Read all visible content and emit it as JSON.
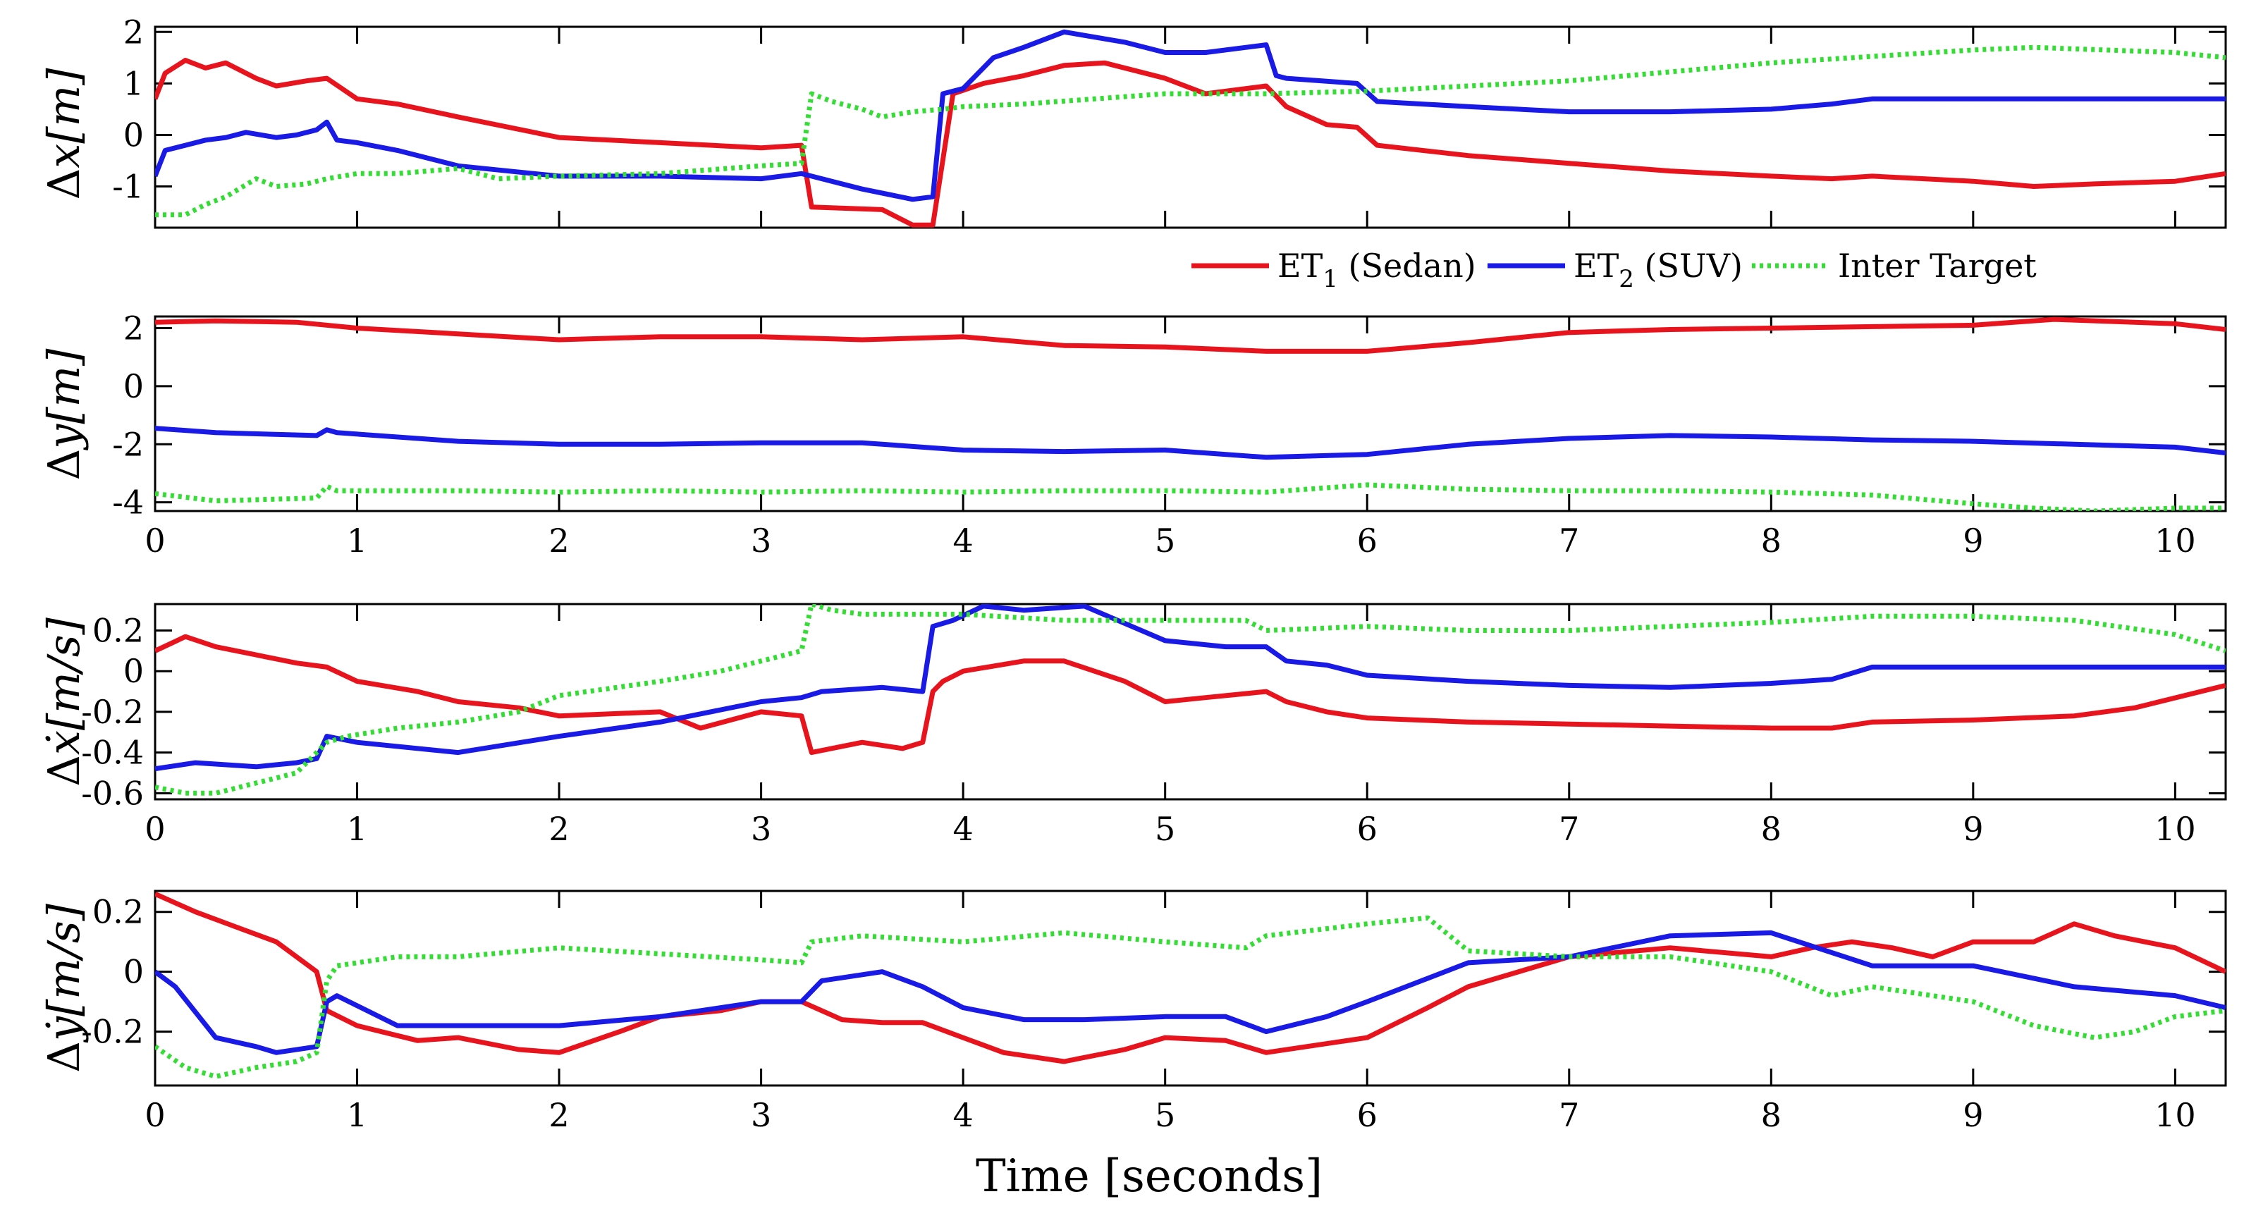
{
  "colors": {
    "et1": "#e8141d",
    "et2": "#1a1ae6",
    "inter": "#33dd33",
    "axis": "#000000",
    "background": "#ffffff"
  },
  "legend": {
    "et1": {
      "main": "ET",
      "sub": "1",
      "rest": " (Sedan)"
    },
    "et2": {
      "main": "ET",
      "sub": "2",
      "rest": " (SUV)"
    },
    "inter": {
      "main": "Inter Target",
      "sub": "",
      "rest": ""
    }
  },
  "chart_data": [
    {
      "type": "line",
      "title": "",
      "ylabel": {
        "prefix": "Δ",
        "var": "x",
        "unit": "[m]"
      },
      "xlim": [
        0,
        10.25
      ],
      "ylim": [
        -1.8,
        2.1
      ],
      "yticks": [
        "-1",
        "0",
        "1",
        "2"
      ],
      "ytick_values": [
        -1,
        0,
        1,
        2
      ],
      "xticks": [],
      "xtick_values": [],
      "series": [
        {
          "name": "ET1 (Sedan)",
          "key": "et1",
          "dash": "solid",
          "x": [
            0,
            0.05,
            0.15,
            0.25,
            0.35,
            0.5,
            0.6,
            0.75,
            0.85,
            1.0,
            1.2,
            1.5,
            2.0,
            2.5,
            3.0,
            3.2,
            3.25,
            3.6,
            3.75,
            3.85,
            3.95,
            4.1,
            4.3,
            4.5,
            4.7,
            5.0,
            5.2,
            5.5,
            5.6,
            5.8,
            5.95,
            6.05,
            6.5,
            7.0,
            7.5,
            8.0,
            8.3,
            8.5,
            9.0,
            9.3,
            9.6,
            10.0,
            10.25
          ],
          "values": [
            0.7,
            1.2,
            1.45,
            1.3,
            1.4,
            1.1,
            0.95,
            1.05,
            1.1,
            0.7,
            0.6,
            0.35,
            -0.05,
            -0.15,
            -0.25,
            -0.2,
            -1.4,
            -1.45,
            -1.75,
            -1.75,
            0.8,
            1.0,
            1.15,
            1.35,
            1.4,
            1.1,
            0.8,
            0.95,
            0.55,
            0.2,
            0.15,
            -0.2,
            -0.4,
            -0.55,
            -0.7,
            -0.8,
            -0.85,
            -0.8,
            -0.9,
            -1.0,
            -0.95,
            -0.9,
            -0.75
          ]
        },
        {
          "name": "ET2 (SUV)",
          "key": "et2",
          "dash": "solid",
          "x": [
            0,
            0.05,
            0.15,
            0.25,
            0.35,
            0.45,
            0.6,
            0.7,
            0.8,
            0.85,
            0.9,
            1.0,
            1.2,
            1.5,
            2.0,
            2.5,
            3.0,
            3.2,
            3.25,
            3.5,
            3.75,
            3.85,
            3.9,
            4.0,
            4.15,
            4.3,
            4.5,
            4.8,
            5.0,
            5.2,
            5.5,
            5.55,
            5.6,
            5.95,
            6.05,
            6.5,
            7.0,
            7.5,
            8.0,
            8.3,
            8.5,
            9.0,
            9.5,
            10.0,
            10.25
          ],
          "values": [
            -0.8,
            -0.3,
            -0.2,
            -0.1,
            -0.05,
            0.05,
            -0.05,
            0.0,
            0.1,
            0.25,
            -0.1,
            -0.15,
            -0.3,
            -0.6,
            -0.8,
            -0.8,
            -0.85,
            -0.75,
            -0.8,
            -1.05,
            -1.25,
            -1.2,
            0.8,
            0.9,
            1.5,
            1.7,
            2.0,
            1.8,
            1.6,
            1.6,
            1.75,
            1.15,
            1.1,
            1.0,
            0.65,
            0.55,
            0.45,
            0.45,
            0.5,
            0.6,
            0.7,
            0.7,
            0.7,
            0.7,
            0.7
          ]
        },
        {
          "name": "Inter Target",
          "key": "inter",
          "dash": "dotted",
          "x": [
            0,
            0.15,
            0.25,
            0.35,
            0.5,
            0.6,
            0.75,
            0.85,
            1.0,
            1.2,
            1.5,
            1.7,
            2.0,
            2.5,
            3.0,
            3.2,
            3.25,
            3.35,
            3.5,
            3.6,
            3.75,
            3.9,
            4.0,
            4.3,
            5.0,
            5.5,
            6.0,
            7.0,
            8.0,
            9.0,
            9.3,
            10.0,
            10.25
          ],
          "values": [
            -1.55,
            -1.55,
            -1.35,
            -1.2,
            -0.85,
            -1.0,
            -0.95,
            -0.85,
            -0.75,
            -0.75,
            -0.65,
            -0.85,
            -0.8,
            -0.75,
            -0.6,
            -0.55,
            0.8,
            0.65,
            0.5,
            0.35,
            0.45,
            0.5,
            0.55,
            0.6,
            0.8,
            0.8,
            0.85,
            1.05,
            1.4,
            1.65,
            1.7,
            1.6,
            1.5
          ]
        }
      ]
    },
    {
      "type": "line",
      "title": "",
      "ylabel": {
        "prefix": "Δ",
        "var": "y",
        "unit": "[m]"
      },
      "xlim": [
        0,
        10.25
      ],
      "ylim": [
        -4.3,
        2.4
      ],
      "yticks": [
        "-4",
        "-2",
        "0",
        "2"
      ],
      "ytick_values": [
        -4,
        -2,
        0,
        2
      ],
      "xticks": [
        "0",
        "1",
        "2",
        "3",
        "4",
        "5",
        "6",
        "7",
        "8",
        "9",
        "10"
      ],
      "xtick_values": [
        0,
        1,
        2,
        3,
        4,
        5,
        6,
        7,
        8,
        9,
        10
      ],
      "series": [
        {
          "name": "ET1 (Sedan)",
          "key": "et1",
          "dash": "solid",
          "x": [
            0,
            0.3,
            0.7,
            1.0,
            1.5,
            2.0,
            2.5,
            3.0,
            3.5,
            4.0,
            4.5,
            5.0,
            5.5,
            6.0,
            6.5,
            7.0,
            7.5,
            8.0,
            8.5,
            9.0,
            9.4,
            10.0,
            10.25
          ],
          "values": [
            2.2,
            2.25,
            2.2,
            2.0,
            1.8,
            1.6,
            1.7,
            1.7,
            1.6,
            1.7,
            1.4,
            1.35,
            1.2,
            1.2,
            1.5,
            1.85,
            1.95,
            2.0,
            2.05,
            2.1,
            2.3,
            2.15,
            1.95
          ]
        },
        {
          "name": "ET2 (SUV)",
          "key": "et2",
          "dash": "solid",
          "x": [
            0,
            0.3,
            0.8,
            0.85,
            0.9,
            1.5,
            2.0,
            2.5,
            3.0,
            3.5,
            4.0,
            4.5,
            5.0,
            5.5,
            6.0,
            6.5,
            7.0,
            7.5,
            8.0,
            8.5,
            9.0,
            9.5,
            10.0,
            10.25
          ],
          "values": [
            -1.45,
            -1.6,
            -1.7,
            -1.5,
            -1.6,
            -1.9,
            -2.0,
            -2.0,
            -1.95,
            -1.95,
            -2.2,
            -2.25,
            -2.2,
            -2.45,
            -2.35,
            -2.0,
            -1.8,
            -1.7,
            -1.75,
            -1.85,
            -1.9,
            -2.0,
            -2.1,
            -2.3
          ]
        },
        {
          "name": "Inter Target",
          "key": "inter",
          "dash": "dotted",
          "x": [
            0,
            0.3,
            0.8,
            0.85,
            0.9,
            1.5,
            2.0,
            2.5,
            3.0,
            3.5,
            4.0,
            4.5,
            5.0,
            5.5,
            6.0,
            6.5,
            7.0,
            7.5,
            8.0,
            8.5,
            9.0,
            9.3,
            9.6,
            10.0,
            10.25
          ],
          "values": [
            -3.7,
            -3.95,
            -3.85,
            -3.45,
            -3.6,
            -3.6,
            -3.65,
            -3.6,
            -3.65,
            -3.6,
            -3.65,
            -3.6,
            -3.6,
            -3.65,
            -3.4,
            -3.55,
            -3.6,
            -3.6,
            -3.65,
            -3.75,
            -4.05,
            -4.2,
            -4.3,
            -4.2,
            -4.2
          ]
        }
      ]
    },
    {
      "type": "line",
      "title": "",
      "ylabel": {
        "prefix": "Δ",
        "var": "ẋ",
        "unit": "[m/s]"
      },
      "xlim": [
        0,
        10.25
      ],
      "ylim": [
        -0.63,
        0.33
      ],
      "yticks": [
        "-0.6",
        "-0.4",
        "-0.2",
        "0",
        "0.2"
      ],
      "ytick_values": [
        -0.6,
        -0.4,
        -0.2,
        0,
        0.2
      ],
      "xticks": [
        "0",
        "1",
        "2",
        "3",
        "4",
        "5",
        "6",
        "7",
        "8",
        "9",
        "10"
      ],
      "xtick_values": [
        0,
        1,
        2,
        3,
        4,
        5,
        6,
        7,
        8,
        9,
        10
      ],
      "series": [
        {
          "name": "ET1 (Sedan)",
          "key": "et1",
          "dash": "solid",
          "x": [
            0,
            0.15,
            0.3,
            0.5,
            0.7,
            0.85,
            1.0,
            1.3,
            1.5,
            1.8,
            2.0,
            2.5,
            2.7,
            3.0,
            3.2,
            3.25,
            3.5,
            3.7,
            3.8,
            3.85,
            3.9,
            4.0,
            4.3,
            4.5,
            4.8,
            5.0,
            5.2,
            5.5,
            5.6,
            5.8,
            6.0,
            6.5,
            7.0,
            7.5,
            8.0,
            8.3,
            8.5,
            9.0,
            9.5,
            9.8,
            10.25
          ],
          "values": [
            0.1,
            0.17,
            0.12,
            0.08,
            0.04,
            0.02,
            -0.05,
            -0.1,
            -0.15,
            -0.18,
            -0.22,
            -0.2,
            -0.28,
            -0.2,
            -0.22,
            -0.4,
            -0.35,
            -0.38,
            -0.35,
            -0.1,
            -0.05,
            0.0,
            0.05,
            0.05,
            -0.05,
            -0.15,
            -0.13,
            -0.1,
            -0.15,
            -0.2,
            -0.23,
            -0.25,
            -0.26,
            -0.27,
            -0.28,
            -0.28,
            -0.25,
            -0.24,
            -0.22,
            -0.18,
            -0.07
          ]
        },
        {
          "name": "ET2 (SUV)",
          "key": "et2",
          "dash": "solid",
          "x": [
            0,
            0.2,
            0.5,
            0.7,
            0.8,
            0.85,
            1.0,
            1.5,
            2.0,
            2.5,
            3.0,
            3.2,
            3.3,
            3.6,
            3.8,
            3.85,
            3.95,
            4.1,
            4.3,
            4.6,
            5.0,
            5.3,
            5.5,
            5.6,
            5.8,
            6.0,
            6.5,
            7.0,
            7.5,
            8.0,
            8.3,
            8.5,
            9.0,
            9.5,
            10.0,
            10.25
          ],
          "values": [
            -0.48,
            -0.45,
            -0.47,
            -0.45,
            -0.43,
            -0.32,
            -0.35,
            -0.4,
            -0.32,
            -0.25,
            -0.15,
            -0.13,
            -0.1,
            -0.08,
            -0.1,
            0.22,
            0.25,
            0.32,
            0.3,
            0.32,
            0.15,
            0.12,
            0.12,
            0.05,
            0.03,
            -0.02,
            -0.05,
            -0.07,
            -0.08,
            -0.06,
            -0.04,
            0.02,
            0.02,
            0.02,
            0.02,
            0.02
          ]
        },
        {
          "name": "Inter Target",
          "key": "inter",
          "dash": "dotted",
          "x": [
            0,
            0.15,
            0.3,
            0.5,
            0.7,
            0.8,
            0.85,
            0.95,
            1.2,
            1.5,
            1.8,
            2.0,
            2.5,
            2.8,
            3.0,
            3.2,
            3.25,
            3.35,
            3.5,
            4.0,
            4.5,
            5.0,
            5.4,
            5.5,
            6.0,
            6.5,
            7.0,
            7.5,
            8.0,
            8.5,
            9.0,
            9.5,
            10.0,
            10.25
          ],
          "values": [
            -0.57,
            -0.6,
            -0.6,
            -0.55,
            -0.5,
            -0.4,
            -0.35,
            -0.32,
            -0.28,
            -0.25,
            -0.2,
            -0.12,
            -0.05,
            0.0,
            0.05,
            0.1,
            0.33,
            0.3,
            0.28,
            0.28,
            0.25,
            0.25,
            0.25,
            0.2,
            0.22,
            0.2,
            0.2,
            0.22,
            0.24,
            0.27,
            0.27,
            0.25,
            0.18,
            0.1
          ]
        }
      ]
    },
    {
      "type": "line",
      "title": "",
      "ylabel": {
        "prefix": "Δ",
        "var": "ẏ",
        "unit": "[m/s]"
      },
      "xlim": [
        0,
        10.25
      ],
      "ylim": [
        -0.38,
        0.27
      ],
      "yticks": [
        "-0.2",
        "0",
        "0.2"
      ],
      "ytick_values": [
        -0.2,
        0,
        0.2
      ],
      "xticks": [
        "0",
        "1",
        "2",
        "3",
        "4",
        "5",
        "6",
        "7",
        "8",
        "9",
        "10"
      ],
      "xtick_values": [
        0,
        1,
        2,
        3,
        4,
        5,
        6,
        7,
        8,
        9,
        10
      ],
      "xlabel": "Time [seconds]",
      "series": [
        {
          "name": "ET1 (Sedan)",
          "key": "et1",
          "dash": "solid",
          "x": [
            0,
            0.2,
            0.4,
            0.6,
            0.8,
            0.85,
            1.0,
            1.3,
            1.5,
            1.8,
            2.0,
            2.3,
            2.5,
            2.8,
            3.0,
            3.2,
            3.4,
            3.6,
            3.8,
            4.0,
            4.2,
            4.5,
            4.8,
            5.0,
            5.3,
            5.5,
            5.7,
            6.0,
            6.3,
            6.5,
            7.0,
            7.5,
            8.0,
            8.2,
            8.4,
            8.6,
            8.8,
            9.0,
            9.3,
            9.5,
            9.7,
            10.0,
            10.25
          ],
          "values": [
            0.26,
            0.2,
            0.15,
            0.1,
            0.0,
            -0.13,
            -0.18,
            -0.23,
            -0.22,
            -0.26,
            -0.27,
            -0.2,
            -0.15,
            -0.13,
            -0.1,
            -0.1,
            -0.16,
            -0.17,
            -0.17,
            -0.22,
            -0.27,
            -0.3,
            -0.26,
            -0.22,
            -0.23,
            -0.27,
            -0.25,
            -0.22,
            -0.12,
            -0.05,
            0.05,
            0.08,
            0.05,
            0.08,
            0.1,
            0.08,
            0.05,
            0.1,
            0.1,
            0.16,
            0.12,
            0.08,
            0.0
          ]
        },
        {
          "name": "ET2 (SUV)",
          "key": "et2",
          "dash": "solid",
          "x": [
            0,
            0.1,
            0.3,
            0.5,
            0.6,
            0.8,
            0.85,
            0.9,
            1.2,
            1.5,
            2.0,
            2.5,
            3.0,
            3.2,
            3.3,
            3.6,
            3.8,
            4.0,
            4.3,
            4.6,
            5.0,
            5.3,
            5.5,
            5.8,
            6.0,
            6.5,
            7.0,
            7.5,
            8.0,
            8.5,
            9.0,
            9.5,
            10.0,
            10.25
          ],
          "values": [
            0.0,
            -0.05,
            -0.22,
            -0.25,
            -0.27,
            -0.25,
            -0.1,
            -0.08,
            -0.18,
            -0.18,
            -0.18,
            -0.15,
            -0.1,
            -0.1,
            -0.03,
            0.0,
            -0.05,
            -0.12,
            -0.16,
            -0.16,
            -0.15,
            -0.15,
            -0.2,
            -0.15,
            -0.1,
            0.03,
            0.05,
            0.12,
            0.13,
            0.02,
            0.02,
            -0.05,
            -0.08,
            -0.12
          ]
        },
        {
          "name": "Inter Target",
          "key": "inter",
          "dash": "dotted",
          "x": [
            0,
            0.15,
            0.3,
            0.5,
            0.7,
            0.8,
            0.85,
            0.9,
            1.2,
            1.5,
            2.0,
            2.5,
            3.0,
            3.2,
            3.25,
            3.5,
            4.0,
            4.5,
            5.0,
            5.4,
            5.5,
            6.0,
            6.3,
            6.5,
            7.0,
            7.5,
            8.0,
            8.3,
            8.5,
            9.0,
            9.3,
            9.6,
            9.8,
            10.0,
            10.25
          ],
          "values": [
            -0.25,
            -0.32,
            -0.35,
            -0.32,
            -0.3,
            -0.27,
            -0.03,
            0.02,
            0.05,
            0.05,
            0.08,
            0.06,
            0.04,
            0.03,
            0.1,
            0.12,
            0.1,
            0.13,
            0.1,
            0.08,
            0.12,
            0.16,
            0.18,
            0.07,
            0.05,
            0.05,
            0.0,
            -0.08,
            -0.05,
            -0.1,
            -0.18,
            -0.22,
            -0.2,
            -0.15,
            -0.13
          ]
        }
      ]
    }
  ]
}
